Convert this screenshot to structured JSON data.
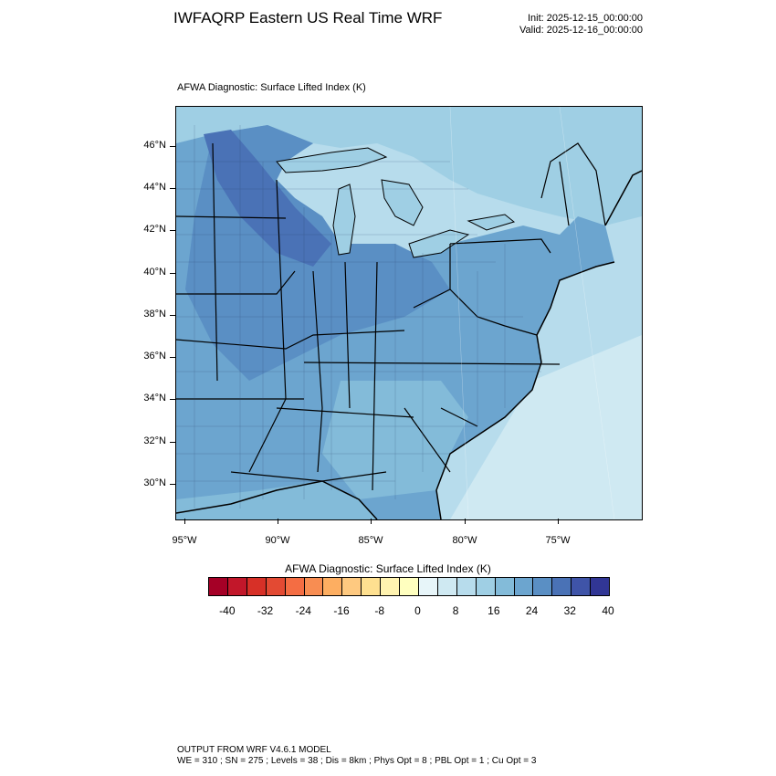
{
  "header": {
    "title": "IWFAQRP Eastern US Real Time WRF",
    "init": "Init: 2025-12-15_00:00:00",
    "valid": "Valid: 2025-12-16_00:00:00"
  },
  "map": {
    "field_title": "AFWA Diagnostic: Surface Lifted Index   (K)",
    "lat_labels": [
      "46°N",
      "44°N",
      "42°N",
      "40°N",
      "38°N",
      "36°N",
      "34°N",
      "32°N",
      "30°N"
    ],
    "lon_labels": [
      "95°W",
      "90°W",
      "85°W",
      "80°W",
      "75°W"
    ]
  },
  "colorbar": {
    "title": "AFWA Diagnostic: Surface Lifted Index  (K)",
    "labels": [
      "-40",
      "-32",
      "-24",
      "-16",
      "-8",
      "0",
      "8",
      "16",
      "24",
      "32",
      "40"
    ],
    "colors": [
      "#a50026",
      "#c2172a",
      "#d73027",
      "#e34a33",
      "#f46d43",
      "#f88d52",
      "#fdae61",
      "#fec980",
      "#fee090",
      "#fff3b0",
      "#ffffbf",
      "#e7f5f9",
      "#cfe9f2",
      "#b7dcec",
      "#9fcfe4",
      "#83bbd9",
      "#6ca5cf",
      "#5a8fc4",
      "#4a72b6",
      "#3f54a8",
      "#313695"
    ]
  },
  "footer": {
    "line1": "OUTPUT FROM WRF V4.6.1 MODEL",
    "line2": "WE = 310 ; SN = 275 ; Levels = 38 ; Dis = 8km ; Phys Opt = 8 ; PBL Opt = 1 ; Cu Opt = 3"
  }
}
